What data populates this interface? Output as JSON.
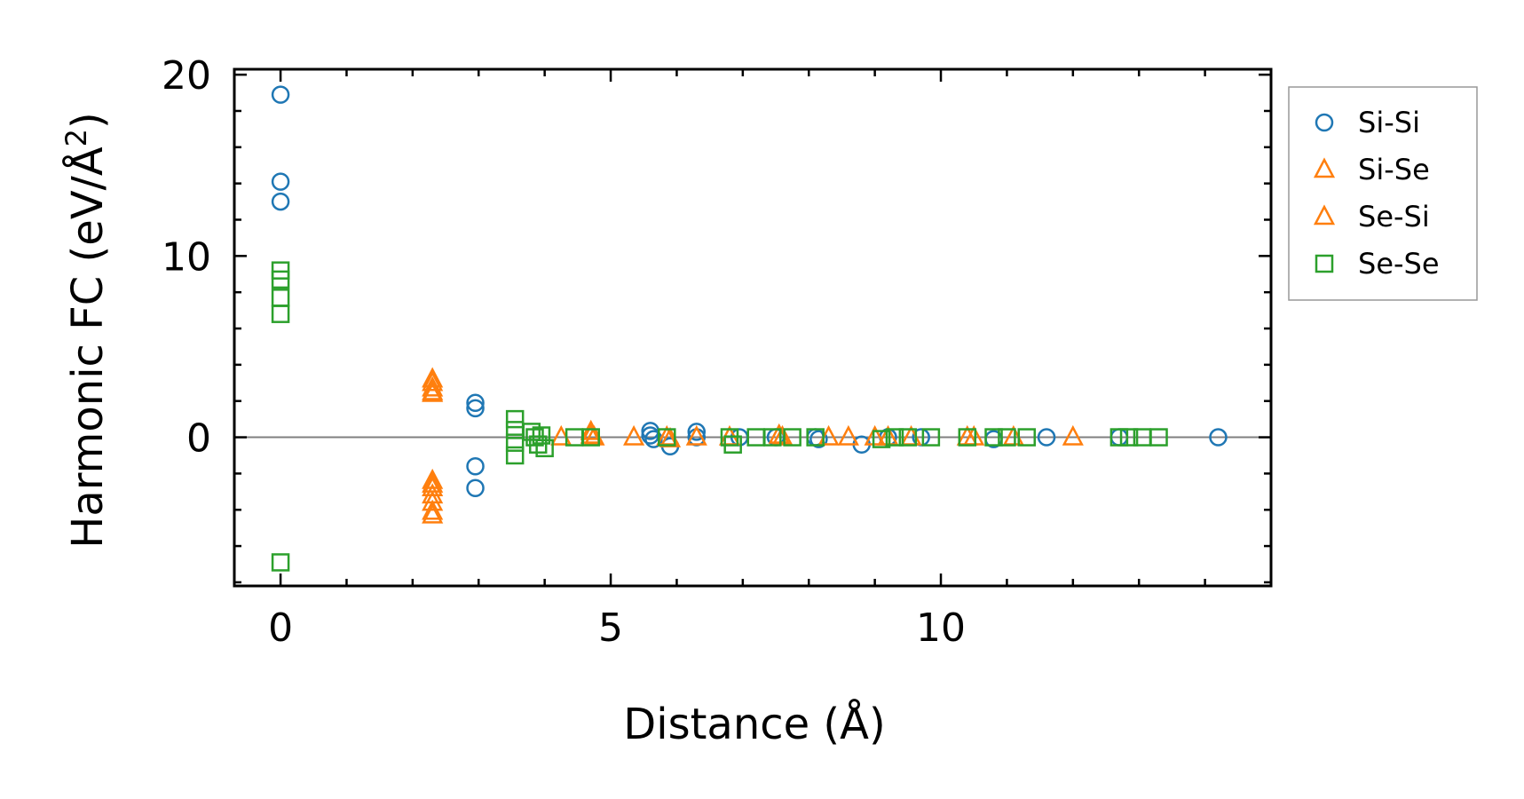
{
  "chart_data": {
    "type": "scatter",
    "title": "",
    "xlabel": "Distance (Å)",
    "ylabel": "Harmonic FC (eV/Å²)",
    "ylabel_parts": {
      "main": "Harmonic FC (eV/Å",
      "sup": "2",
      "close": ")"
    },
    "xlim": [
      -0.7,
      15.0
    ],
    "ylim": [
      -8.2,
      20.3
    ],
    "xticks": [
      0,
      5,
      10
    ],
    "yticks": [
      0,
      10,
      20
    ],
    "x_minor_step": 1,
    "y_minor_step": 2,
    "zero_line": 0,
    "legend_position": "outside-right",
    "series": [
      {
        "name": "Si-Si",
        "marker": "circle",
        "color": "#1f77b4",
        "points": [
          [
            0,
            18.9
          ],
          [
            0,
            14.1
          ],
          [
            0,
            13.0
          ],
          [
            2.95,
            1.9
          ],
          [
            2.95,
            1.6
          ],
          [
            2.95,
            -1.6
          ],
          [
            2.95,
            -2.8
          ],
          [
            5.6,
            0.35
          ],
          [
            5.6,
            0.1
          ],
          [
            5.65,
            -0.1
          ],
          [
            5.9,
            -0.5
          ],
          [
            6.3,
            0.3
          ],
          [
            6.3,
            0.0
          ],
          [
            6.95,
            0.0
          ],
          [
            7.5,
            0.0
          ],
          [
            8.1,
            0.0
          ],
          [
            8.15,
            -0.1
          ],
          [
            8.8,
            -0.4
          ],
          [
            9.2,
            0.0
          ],
          [
            9.7,
            0.0
          ],
          [
            10.8,
            -0.1
          ],
          [
            11.6,
            0.0
          ],
          [
            12.7,
            0.0
          ],
          [
            14.2,
            0.0
          ]
        ]
      },
      {
        "name": "Si-Se",
        "marker": "triangle",
        "color": "#ff7f0e",
        "points": [
          [
            2.3,
            3.0
          ],
          [
            2.3,
            2.7
          ],
          [
            2.3,
            2.4
          ],
          [
            2.3,
            -2.4
          ],
          [
            2.3,
            -2.8
          ],
          [
            2.3,
            -3.2
          ],
          [
            2.3,
            -3.6
          ],
          [
            2.3,
            -4.1
          ],
          [
            4.25,
            0.0
          ],
          [
            4.7,
            0.3
          ],
          [
            4.75,
            0.0
          ],
          [
            5.35,
            0.0
          ],
          [
            5.85,
            0.0
          ],
          [
            6.3,
            0.0
          ],
          [
            6.8,
            0.0
          ],
          [
            7.55,
            0.1
          ],
          [
            8.3,
            0.0
          ],
          [
            8.6,
            0.0
          ],
          [
            9.2,
            0.0
          ],
          [
            9.55,
            0.0
          ],
          [
            10.4,
            0.0
          ],
          [
            11.1,
            0.0
          ],
          [
            12.0,
            0.0
          ]
        ]
      },
      {
        "name": "Se-Si",
        "marker": "triangle",
        "color": "#ff7f0e",
        "points": [
          [
            2.3,
            3.2
          ],
          [
            2.3,
            2.5
          ],
          [
            2.3,
            -2.6
          ],
          [
            2.3,
            -4.3
          ],
          [
            4.7,
            0.1
          ],
          [
            5.9,
            -0.1
          ],
          [
            7.6,
            0.0
          ],
          [
            9.0,
            0.0
          ],
          [
            10.5,
            0.0
          ]
        ]
      },
      {
        "name": "Se-Se",
        "marker": "square",
        "color": "#2ca02c",
        "points": [
          [
            0,
            9.2
          ],
          [
            0,
            8.7
          ],
          [
            0,
            7.7
          ],
          [
            0,
            6.8
          ],
          [
            0,
            -6.9
          ],
          [
            3.55,
            1.0
          ],
          [
            3.55,
            0.4
          ],
          [
            3.55,
            -0.3
          ],
          [
            3.55,
            -1.0
          ],
          [
            3.8,
            0.3
          ],
          [
            3.85,
            0.0
          ],
          [
            3.9,
            -0.4
          ],
          [
            3.95,
            0.1
          ],
          [
            4.0,
            -0.6
          ],
          [
            4.45,
            0.0
          ],
          [
            4.7,
            0.0
          ],
          [
            5.85,
            0.0
          ],
          [
            6.8,
            0.0
          ],
          [
            6.85,
            -0.4
          ],
          [
            7.2,
            0.0
          ],
          [
            7.45,
            0.0
          ],
          [
            7.75,
            0.0
          ],
          [
            8.1,
            0.0
          ],
          [
            9.1,
            -0.1
          ],
          [
            9.3,
            0.0
          ],
          [
            9.5,
            0.0
          ],
          [
            9.85,
            0.0
          ],
          [
            10.4,
            0.0
          ],
          [
            10.8,
            0.0
          ],
          [
            11.0,
            0.0
          ],
          [
            11.3,
            0.0
          ],
          [
            12.7,
            0.0
          ],
          [
            12.85,
            0.0
          ],
          [
            13.05,
            0.0
          ],
          [
            13.3,
            0.0
          ]
        ]
      }
    ]
  }
}
